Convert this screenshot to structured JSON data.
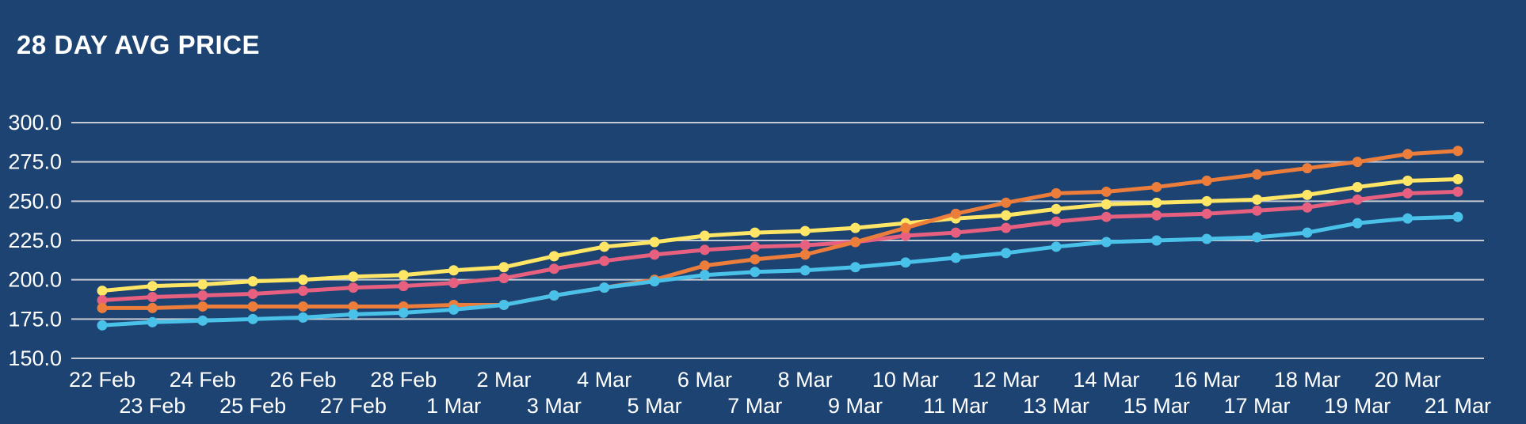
{
  "header": {
    "title": "28 DAY AVG PRICE"
  },
  "colors": {
    "background": "#1C4372",
    "gridline": "#C7CAD1",
    "text": "#FFFFFF"
  },
  "chart_data": {
    "type": "line",
    "title": "28 DAY AVG PRICE",
    "x_labels": [
      "22 Feb",
      "23 Feb",
      "24 Feb",
      "25 Feb",
      "26 Feb",
      "27 Feb",
      "28 Feb",
      "1 Mar",
      "2 Mar",
      "3 Mar",
      "4 Mar",
      "5 Mar",
      "6 Mar",
      "7 Mar",
      "8 Mar",
      "9 Mar",
      "10 Mar",
      "11 Mar",
      "12 Mar",
      "13 Mar",
      "14 Mar",
      "15 Mar",
      "16 Mar",
      "17 Mar",
      "18 Mar",
      "19 Mar",
      "20 Mar",
      "21 Mar"
    ],
    "x_label_layout": "staggered-two-rows",
    "y_tick_labels": [
      "300.0",
      "275.0",
      "250.0",
      "225.0",
      "200.0",
      "175.0",
      "150.0"
    ],
    "ylim": [
      150,
      300
    ],
    "grid": "horizontal-only",
    "legend": "none",
    "marker": "circle",
    "series": [
      {
        "name": "yellow",
        "color": "#FFE666",
        "values": [
          193,
          196,
          197,
          199,
          200,
          202,
          203,
          206,
          208,
          215,
          221,
          224,
          228,
          230,
          231,
          233,
          236,
          239,
          241,
          245,
          248,
          249,
          250,
          251,
          254,
          259,
          263,
          264
        ]
      },
      {
        "name": "pink",
        "color": "#E8607F",
        "values": [
          187,
          189,
          190,
          191,
          193,
          195,
          196,
          198,
          201,
          207,
          212,
          216,
          219,
          221,
          222,
          224,
          228,
          230,
          233,
          237,
          240,
          241,
          242,
          244,
          246,
          251,
          255,
          256
        ]
      },
      {
        "name": "orange",
        "color": "#EC7D3B",
        "values": [
          182,
          182,
          183,
          183,
          183,
          183,
          183,
          184,
          184,
          190,
          195,
          200,
          209,
          213,
          216,
          224,
          233,
          242,
          249,
          255,
          256,
          259,
          263,
          267,
          271,
          275,
          280,
          282
        ]
      },
      {
        "name": "cyan",
        "color": "#4AC1E8",
        "values": [
          171,
          173,
          174,
          175,
          176,
          178,
          179,
          181,
          184,
          190,
          195,
          199,
          203,
          205,
          206,
          208,
          211,
          214,
          217,
          221,
          224,
          225,
          226,
          227,
          230,
          236,
          239,
          240
        ]
      }
    ]
  }
}
